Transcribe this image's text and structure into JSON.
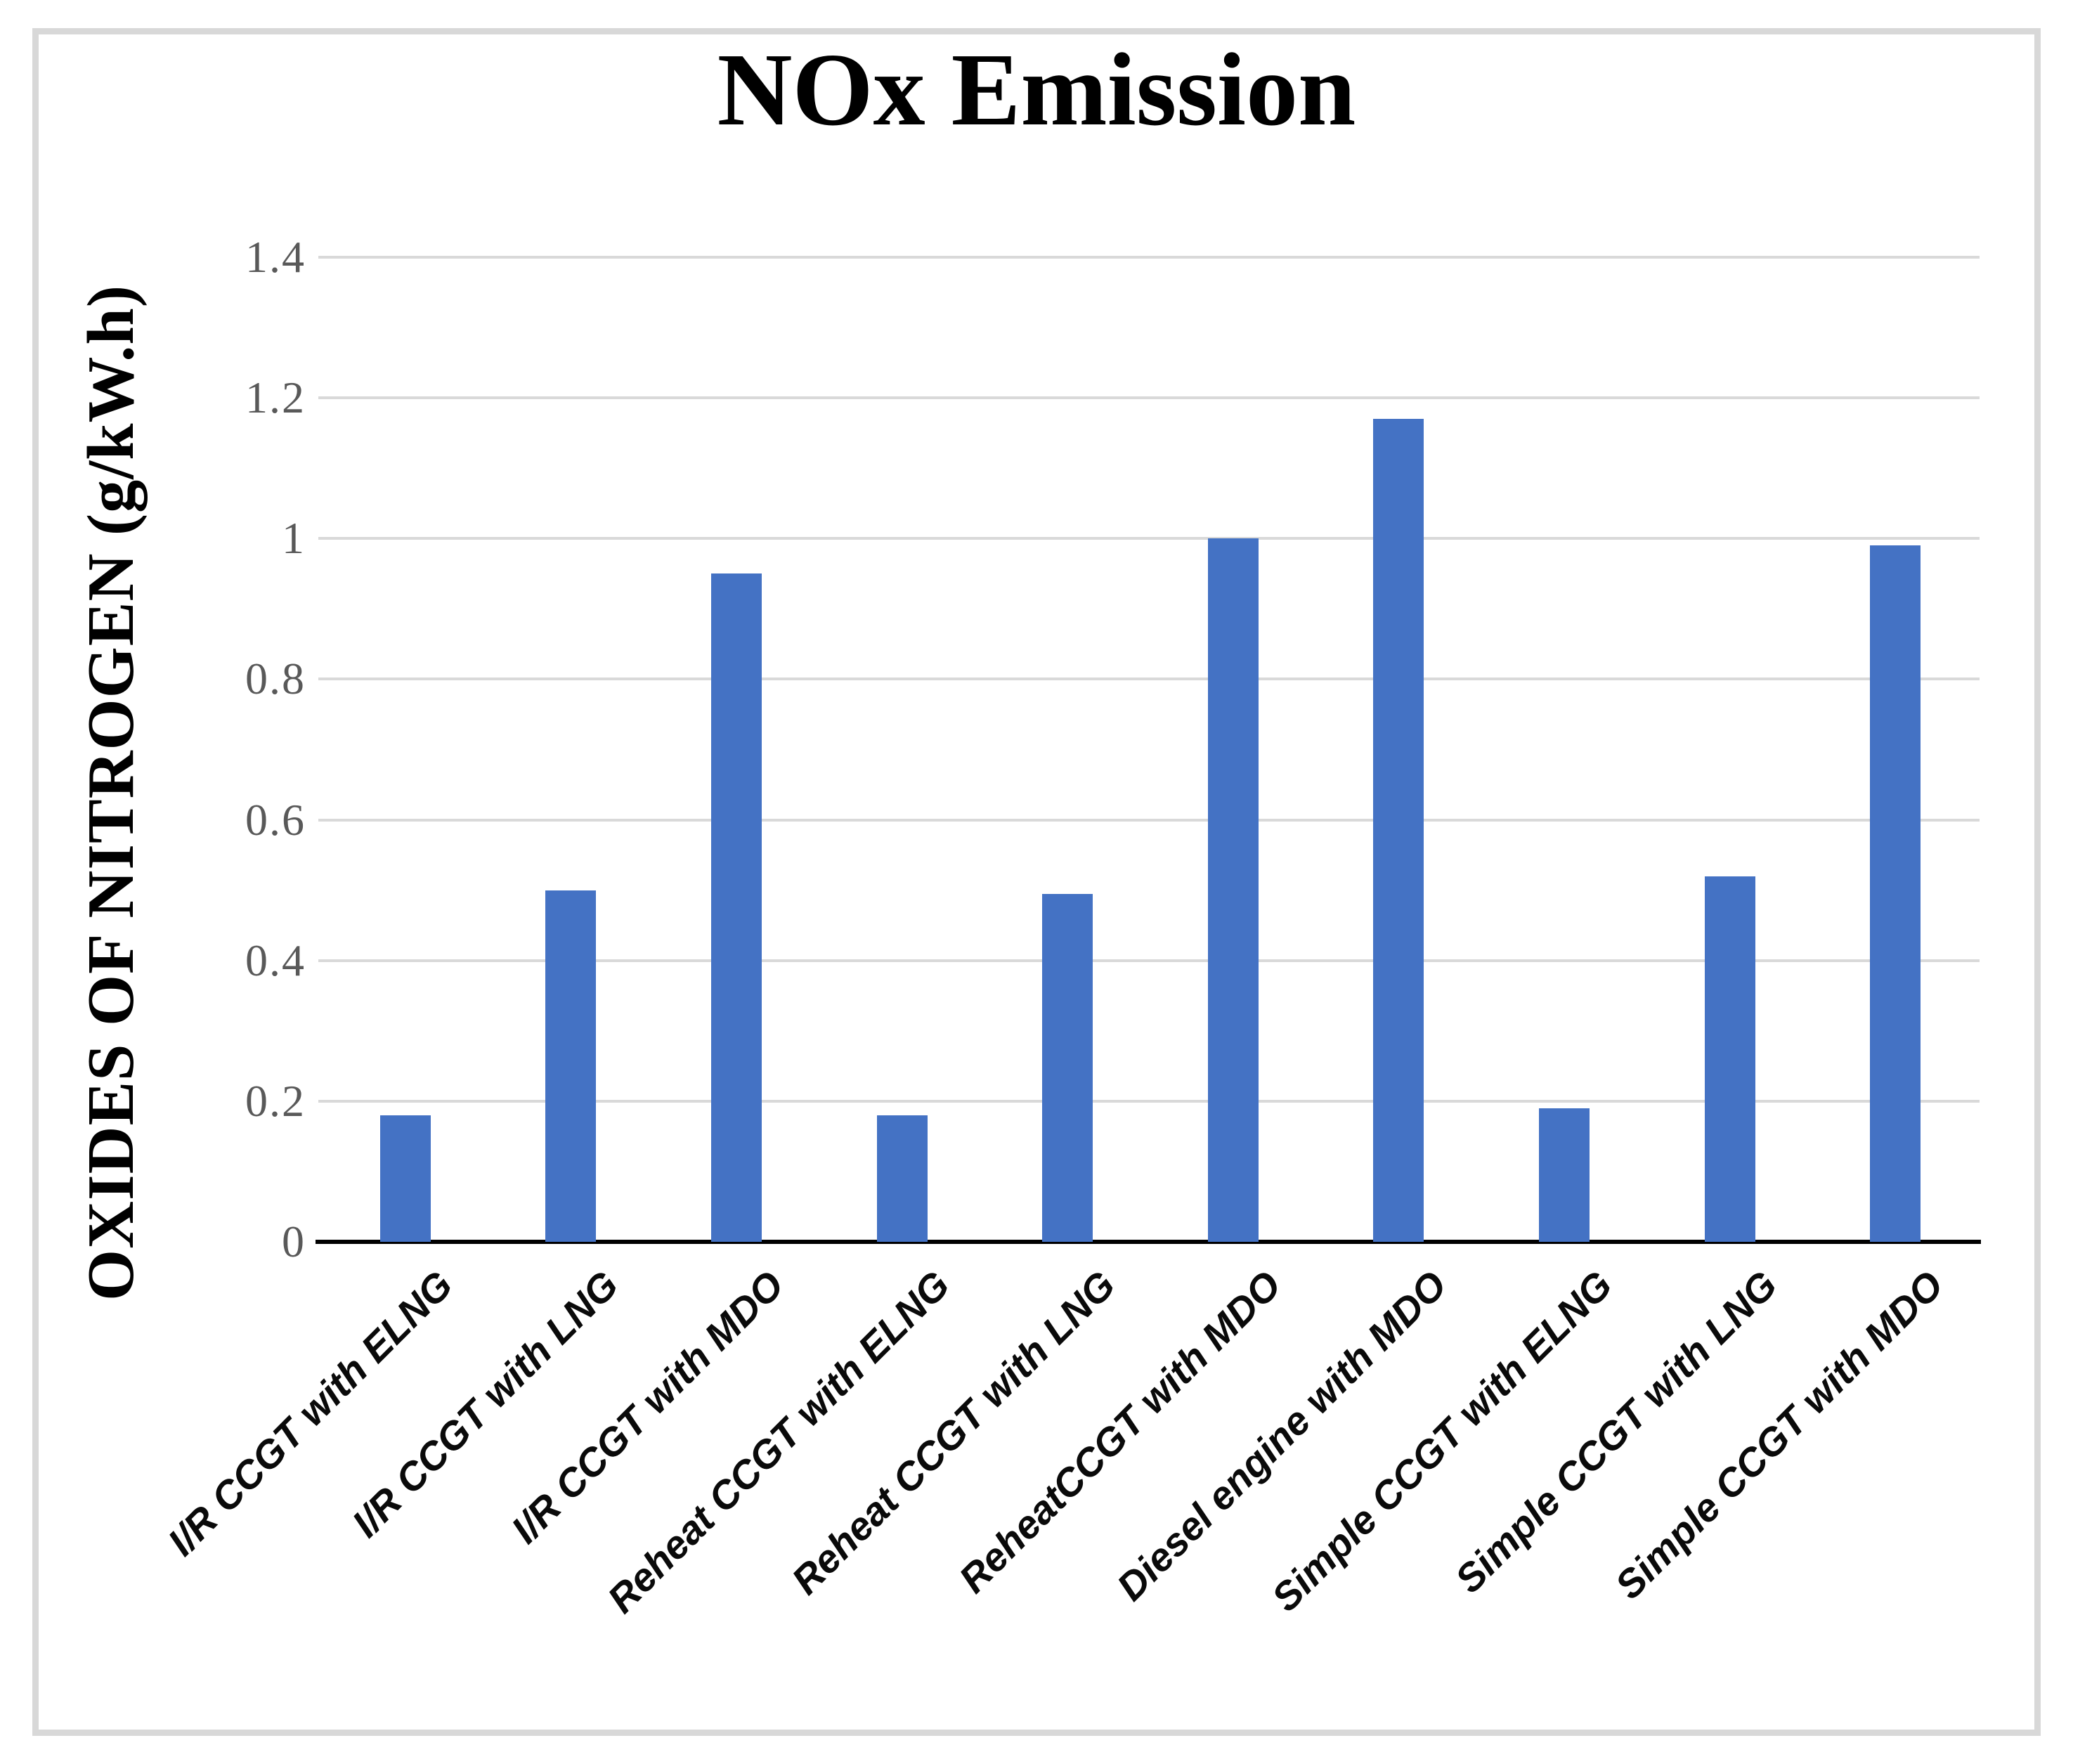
{
  "chart_data": {
    "type": "bar",
    "title": "NOx Emission",
    "xlabel": "",
    "ylabel": "OXIDES OF NITROGEN (g/kW.h)",
    "categories": [
      "I/R CCGT with ELNG",
      "I/R CCGT with LNG",
      "I/R CCGT with MDO",
      "Reheat CCGT with ELNG",
      "Reheat CCGT with LNG",
      "ReheatCCGT with MDO",
      "Diesel engine with MDO",
      "Simple CCGT with ELNG",
      "Simple CCGT with LNG",
      "Simple CCGT with MDO"
    ],
    "values": [
      0.18,
      0.5,
      0.95,
      0.18,
      0.495,
      1.0,
      1.17,
      0.19,
      0.52,
      0.99
    ],
    "ylim": [
      0,
      1.4
    ],
    "ytick_values": [
      0,
      0.2,
      0.4,
      0.6,
      0.8,
      1.0,
      1.2,
      1.4
    ],
    "ytick_labels": [
      "0",
      "0.2",
      "0.4",
      "0.6",
      "0.8",
      "1",
      "1.2",
      "1.4"
    ],
    "grid": "horizontal-only",
    "legend": "none",
    "category_label_rotation_deg": 45,
    "colors": {
      "bar": "#4472C4",
      "gridline": "#d9d9d9",
      "axis_line": "#000000",
      "tick_label": "#595959",
      "category_label": "#0a0a0a",
      "frame_border": "#d8d8d8"
    }
  }
}
